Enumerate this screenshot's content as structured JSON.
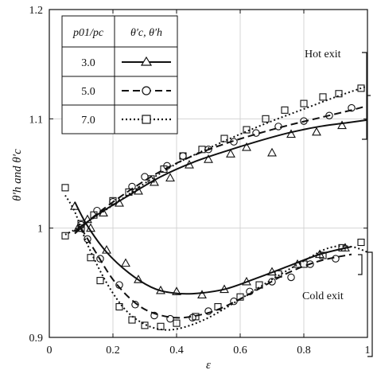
{
  "chart_data": {
    "type": "line",
    "xlabel": "ε",
    "ylabel": "θ′h and θ′c",
    "xlim": [
      0,
      1
    ],
    "ylim": [
      0.9,
      1.2
    ],
    "x_ticks": [
      "0",
      "0.2",
      "0.4",
      "0.6",
      "0.8",
      "1"
    ],
    "y_ticks": [
      "0.9",
      "1",
      "1.1",
      "1.2"
    ],
    "grid": true,
    "legend": {
      "placement": "top-left",
      "header_left": "p01/pc",
      "header_right": "θ′c, θ′h",
      "entries": [
        "3.0",
        "5.0",
        "7.0"
      ]
    },
    "annotations": [
      {
        "text": "Hot exit"
      },
      {
        "text": "Cold exit"
      }
    ],
    "series": [
      {
        "name": "3.0",
        "branch": "hot",
        "style": "solid",
        "marker": "triangle",
        "fit": [
          [
            0.08,
            0.997
          ],
          [
            0.15,
            1.012
          ],
          [
            0.25,
            1.03
          ],
          [
            0.35,
            1.047
          ],
          [
            0.45,
            1.06
          ],
          [
            0.55,
            1.07
          ],
          [
            0.65,
            1.079
          ],
          [
            0.75,
            1.087
          ],
          [
            0.85,
            1.093
          ],
          [
            0.95,
            1.097
          ],
          [
            1.0,
            1.099
          ]
        ],
        "points": [
          [
            0.09,
            1.0
          ],
          [
            0.12,
            1.008
          ],
          [
            0.17,
            1.014
          ],
          [
            0.22,
            1.023
          ],
          [
            0.28,
            1.034
          ],
          [
            0.33,
            1.042
          ],
          [
            0.38,
            1.046
          ],
          [
            0.44,
            1.058
          ],
          [
            0.5,
            1.063
          ],
          [
            0.57,
            1.068
          ],
          [
            0.62,
            1.074
          ],
          [
            0.7,
            1.069
          ],
          [
            0.76,
            1.086
          ],
          [
            0.84,
            1.088
          ],
          [
            0.92,
            1.094
          ]
        ]
      },
      {
        "name": "3.0",
        "branch": "cold",
        "style": "solid",
        "marker": "triangle",
        "fit": [
          [
            0.08,
            1.024
          ],
          [
            0.12,
            1.002
          ],
          [
            0.18,
            0.978
          ],
          [
            0.25,
            0.959
          ],
          [
            0.32,
            0.946
          ],
          [
            0.38,
            0.941
          ],
          [
            0.45,
            0.94
          ],
          [
            0.55,
            0.944
          ],
          [
            0.65,
            0.954
          ],
          [
            0.75,
            0.965
          ],
          [
            0.85,
            0.976
          ],
          [
            0.95,
            0.983
          ]
        ],
        "points": [
          [
            0.08,
            1.02
          ],
          [
            0.13,
            1.0
          ],
          [
            0.18,
            0.98
          ],
          [
            0.24,
            0.968
          ],
          [
            0.28,
            0.953
          ],
          [
            0.35,
            0.943
          ],
          [
            0.4,
            0.942
          ],
          [
            0.48,
            0.939
          ],
          [
            0.55,
            0.944
          ],
          [
            0.62,
            0.951
          ],
          [
            0.7,
            0.96
          ],
          [
            0.78,
            0.967
          ],
          [
            0.85,
            0.976
          ],
          [
            0.93,
            0.982
          ]
        ]
      },
      {
        "name": "5.0",
        "branch": "hot",
        "style": "dashed",
        "marker": "circle",
        "fit": [
          [
            0.08,
            0.995
          ],
          [
            0.15,
            1.013
          ],
          [
            0.25,
            1.034
          ],
          [
            0.35,
            1.052
          ],
          [
            0.45,
            1.066
          ],
          [
            0.55,
            1.077
          ],
          [
            0.65,
            1.086
          ],
          [
            0.75,
            1.094
          ],
          [
            0.85,
            1.101
          ],
          [
            0.95,
            1.108
          ],
          [
            1.0,
            1.112
          ]
        ],
        "points": [
          [
            0.1,
            1.003
          ],
          [
            0.15,
            1.016
          ],
          [
            0.2,
            1.024
          ],
          [
            0.26,
            1.038
          ],
          [
            0.3,
            1.047
          ],
          [
            0.37,
            1.057
          ],
          [
            0.42,
            1.066
          ],
          [
            0.5,
            1.072
          ],
          [
            0.58,
            1.079
          ],
          [
            0.65,
            1.087
          ],
          [
            0.72,
            1.093
          ],
          [
            0.8,
            1.098
          ],
          [
            0.88,
            1.103
          ],
          [
            0.95,
            1.11
          ]
        ]
      },
      {
        "name": "5.0",
        "branch": "cold",
        "style": "dashed",
        "marker": "circle",
        "fit": [
          [
            0.1,
            1.0
          ],
          [
            0.15,
            0.976
          ],
          [
            0.2,
            0.953
          ],
          [
            0.26,
            0.934
          ],
          [
            0.32,
            0.923
          ],
          [
            0.4,
            0.918
          ],
          [
            0.48,
            0.921
          ],
          [
            0.55,
            0.928
          ],
          [
            0.65,
            0.943
          ],
          [
            0.75,
            0.959
          ],
          [
            0.85,
            0.97
          ],
          [
            0.95,
            0.976
          ]
        ],
        "points": [
          [
            0.12,
            0.99
          ],
          [
            0.16,
            0.972
          ],
          [
            0.22,
            0.948
          ],
          [
            0.27,
            0.93
          ],
          [
            0.33,
            0.92
          ],
          [
            0.38,
            0.917
          ],
          [
            0.45,
            0.918
          ],
          [
            0.5,
            0.924
          ],
          [
            0.58,
            0.933
          ],
          [
            0.63,
            0.942
          ],
          [
            0.7,
            0.951
          ],
          [
            0.76,
            0.955
          ],
          [
            0.82,
            0.967
          ],
          [
            0.9,
            0.972
          ]
        ]
      },
      {
        "name": "7.0",
        "branch": "hot",
        "style": "dotted",
        "marker": "square",
        "fit": [
          [
            0.05,
            0.994
          ],
          [
            0.1,
            1.002
          ],
          [
            0.2,
            1.021
          ],
          [
            0.3,
            1.041
          ],
          [
            0.4,
            1.059
          ],
          [
            0.5,
            1.073
          ],
          [
            0.6,
            1.086
          ],
          [
            0.7,
            1.098
          ],
          [
            0.8,
            1.109
          ],
          [
            0.9,
            1.12
          ],
          [
            1.0,
            1.13
          ]
        ],
        "points": [
          [
            0.05,
            0.993
          ],
          [
            0.1,
            1.004
          ],
          [
            0.14,
            1.012
          ],
          [
            0.2,
            1.025
          ],
          [
            0.25,
            1.033
          ],
          [
            0.32,
            1.045
          ],
          [
            0.36,
            1.054
          ],
          [
            0.42,
            1.066
          ],
          [
            0.48,
            1.072
          ],
          [
            0.55,
            1.082
          ],
          [
            0.62,
            1.09
          ],
          [
            0.68,
            1.1
          ],
          [
            0.74,
            1.108
          ],
          [
            0.8,
            1.114
          ],
          [
            0.86,
            1.12
          ],
          [
            0.91,
            1.123
          ],
          [
            0.98,
            1.128
          ]
        ]
      },
      {
        "name": "7.0",
        "branch": "cold",
        "style": "dotted",
        "marker": "square",
        "fit": [
          [
            0.05,
            1.03
          ],
          [
            0.08,
            1.015
          ],
          [
            0.12,
            0.985
          ],
          [
            0.18,
            0.95
          ],
          [
            0.24,
            0.925
          ],
          [
            0.3,
            0.912
          ],
          [
            0.36,
            0.907
          ],
          [
            0.42,
            0.909
          ],
          [
            0.5,
            0.918
          ],
          [
            0.6,
            0.935
          ],
          [
            0.7,
            0.953
          ],
          [
            0.8,
            0.97
          ],
          [
            0.88,
            0.982
          ],
          [
            0.95,
            0.983
          ],
          [
            1.0,
            0.978
          ]
        ],
        "points": [
          [
            0.05,
            1.037
          ],
          [
            0.1,
            1.0
          ],
          [
            0.13,
            0.973
          ],
          [
            0.16,
            0.952
          ],
          [
            0.22,
            0.928
          ],
          [
            0.26,
            0.916
          ],
          [
            0.3,
            0.911
          ],
          [
            0.35,
            0.91
          ],
          [
            0.4,
            0.913
          ],
          [
            0.46,
            0.919
          ],
          [
            0.53,
            0.928
          ],
          [
            0.6,
            0.937
          ],
          [
            0.66,
            0.948
          ],
          [
            0.72,
            0.958
          ],
          [
            0.8,
            0.967
          ],
          [
            0.86,
            0.975
          ],
          [
            0.92,
            0.982
          ],
          [
            0.98,
            0.987
          ]
        ]
      }
    ]
  }
}
